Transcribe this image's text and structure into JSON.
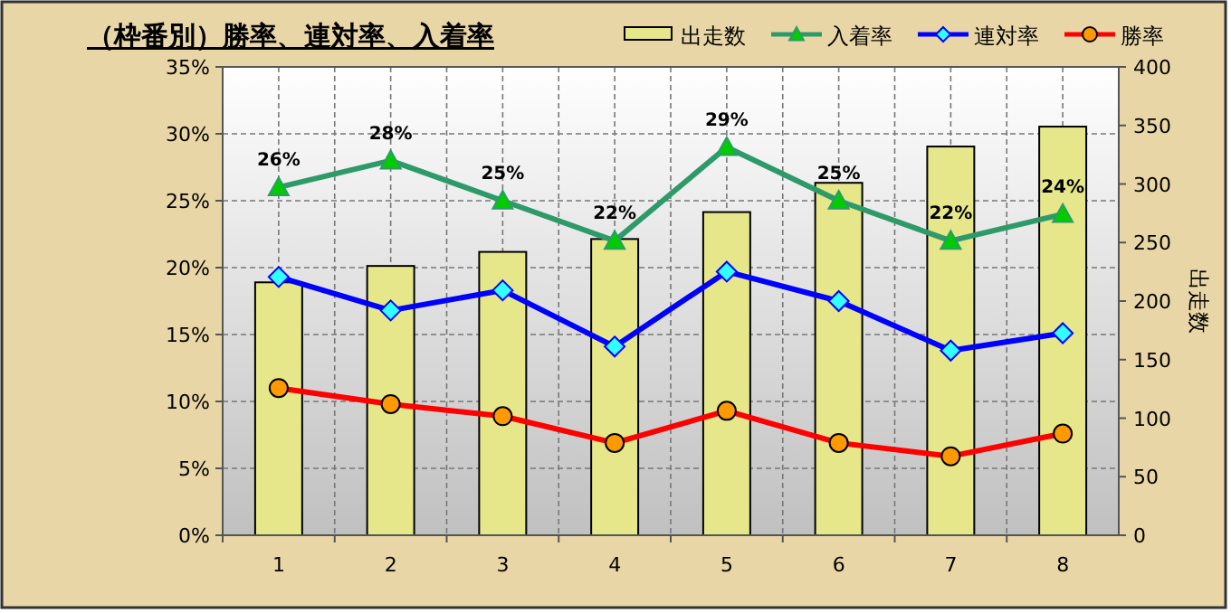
{
  "chart_data": {
    "type": "bar",
    "title": "（枠番別）勝率、連対率、入着率",
    "categories": [
      "1",
      "2",
      "3",
      "4",
      "5",
      "6",
      "7",
      "8"
    ],
    "series": [
      {
        "name": "出走数",
        "axis": "y2",
        "color": "#e6e68a",
        "values": [
          216,
          230,
          242,
          253,
          276,
          301,
          332,
          349
        ]
      },
      {
        "name": "入着率",
        "type": "line",
        "marker": "triangle",
        "color": "#2e9a6a",
        "values": [
          26,
          28,
          25,
          22,
          29,
          25,
          22,
          24
        ],
        "value_labels": [
          "26%",
          "28%",
          "25%",
          "22%",
          "29%",
          "25%",
          "22%",
          "24%"
        ]
      },
      {
        "name": "連対率",
        "type": "line",
        "marker": "diamond",
        "color": "#0000ff",
        "values": [
          19.3,
          16.8,
          18.3,
          14.1,
          19.7,
          17.5,
          13.8,
          15.1
        ]
      },
      {
        "name": "勝率",
        "type": "line",
        "marker": "circle",
        "color": "#ff0000",
        "values": [
          11.0,
          9.8,
          8.9,
          6.9,
          9.3,
          6.9,
          5.9,
          7.6
        ]
      }
    ],
    "y2label": "出走数",
    "ylim": [
      0,
      35
    ],
    "yticks": [
      {
        "value": 0,
        "label": "0%"
      },
      {
        "value": 5,
        "label": "5%"
      },
      {
        "value": 10,
        "label": "10%"
      },
      {
        "value": 15,
        "label": "15%"
      },
      {
        "value": 20,
        "label": "20%"
      },
      {
        "value": 25,
        "label": "25%"
      },
      {
        "value": 30,
        "label": "30%"
      },
      {
        "value": 35,
        "label": "35%"
      }
    ],
    "y2lim": [
      0,
      400
    ],
    "y2ticks": [
      0,
      50,
      100,
      150,
      200,
      250,
      300,
      350,
      400
    ],
    "grid": true,
    "legend": "top right"
  }
}
